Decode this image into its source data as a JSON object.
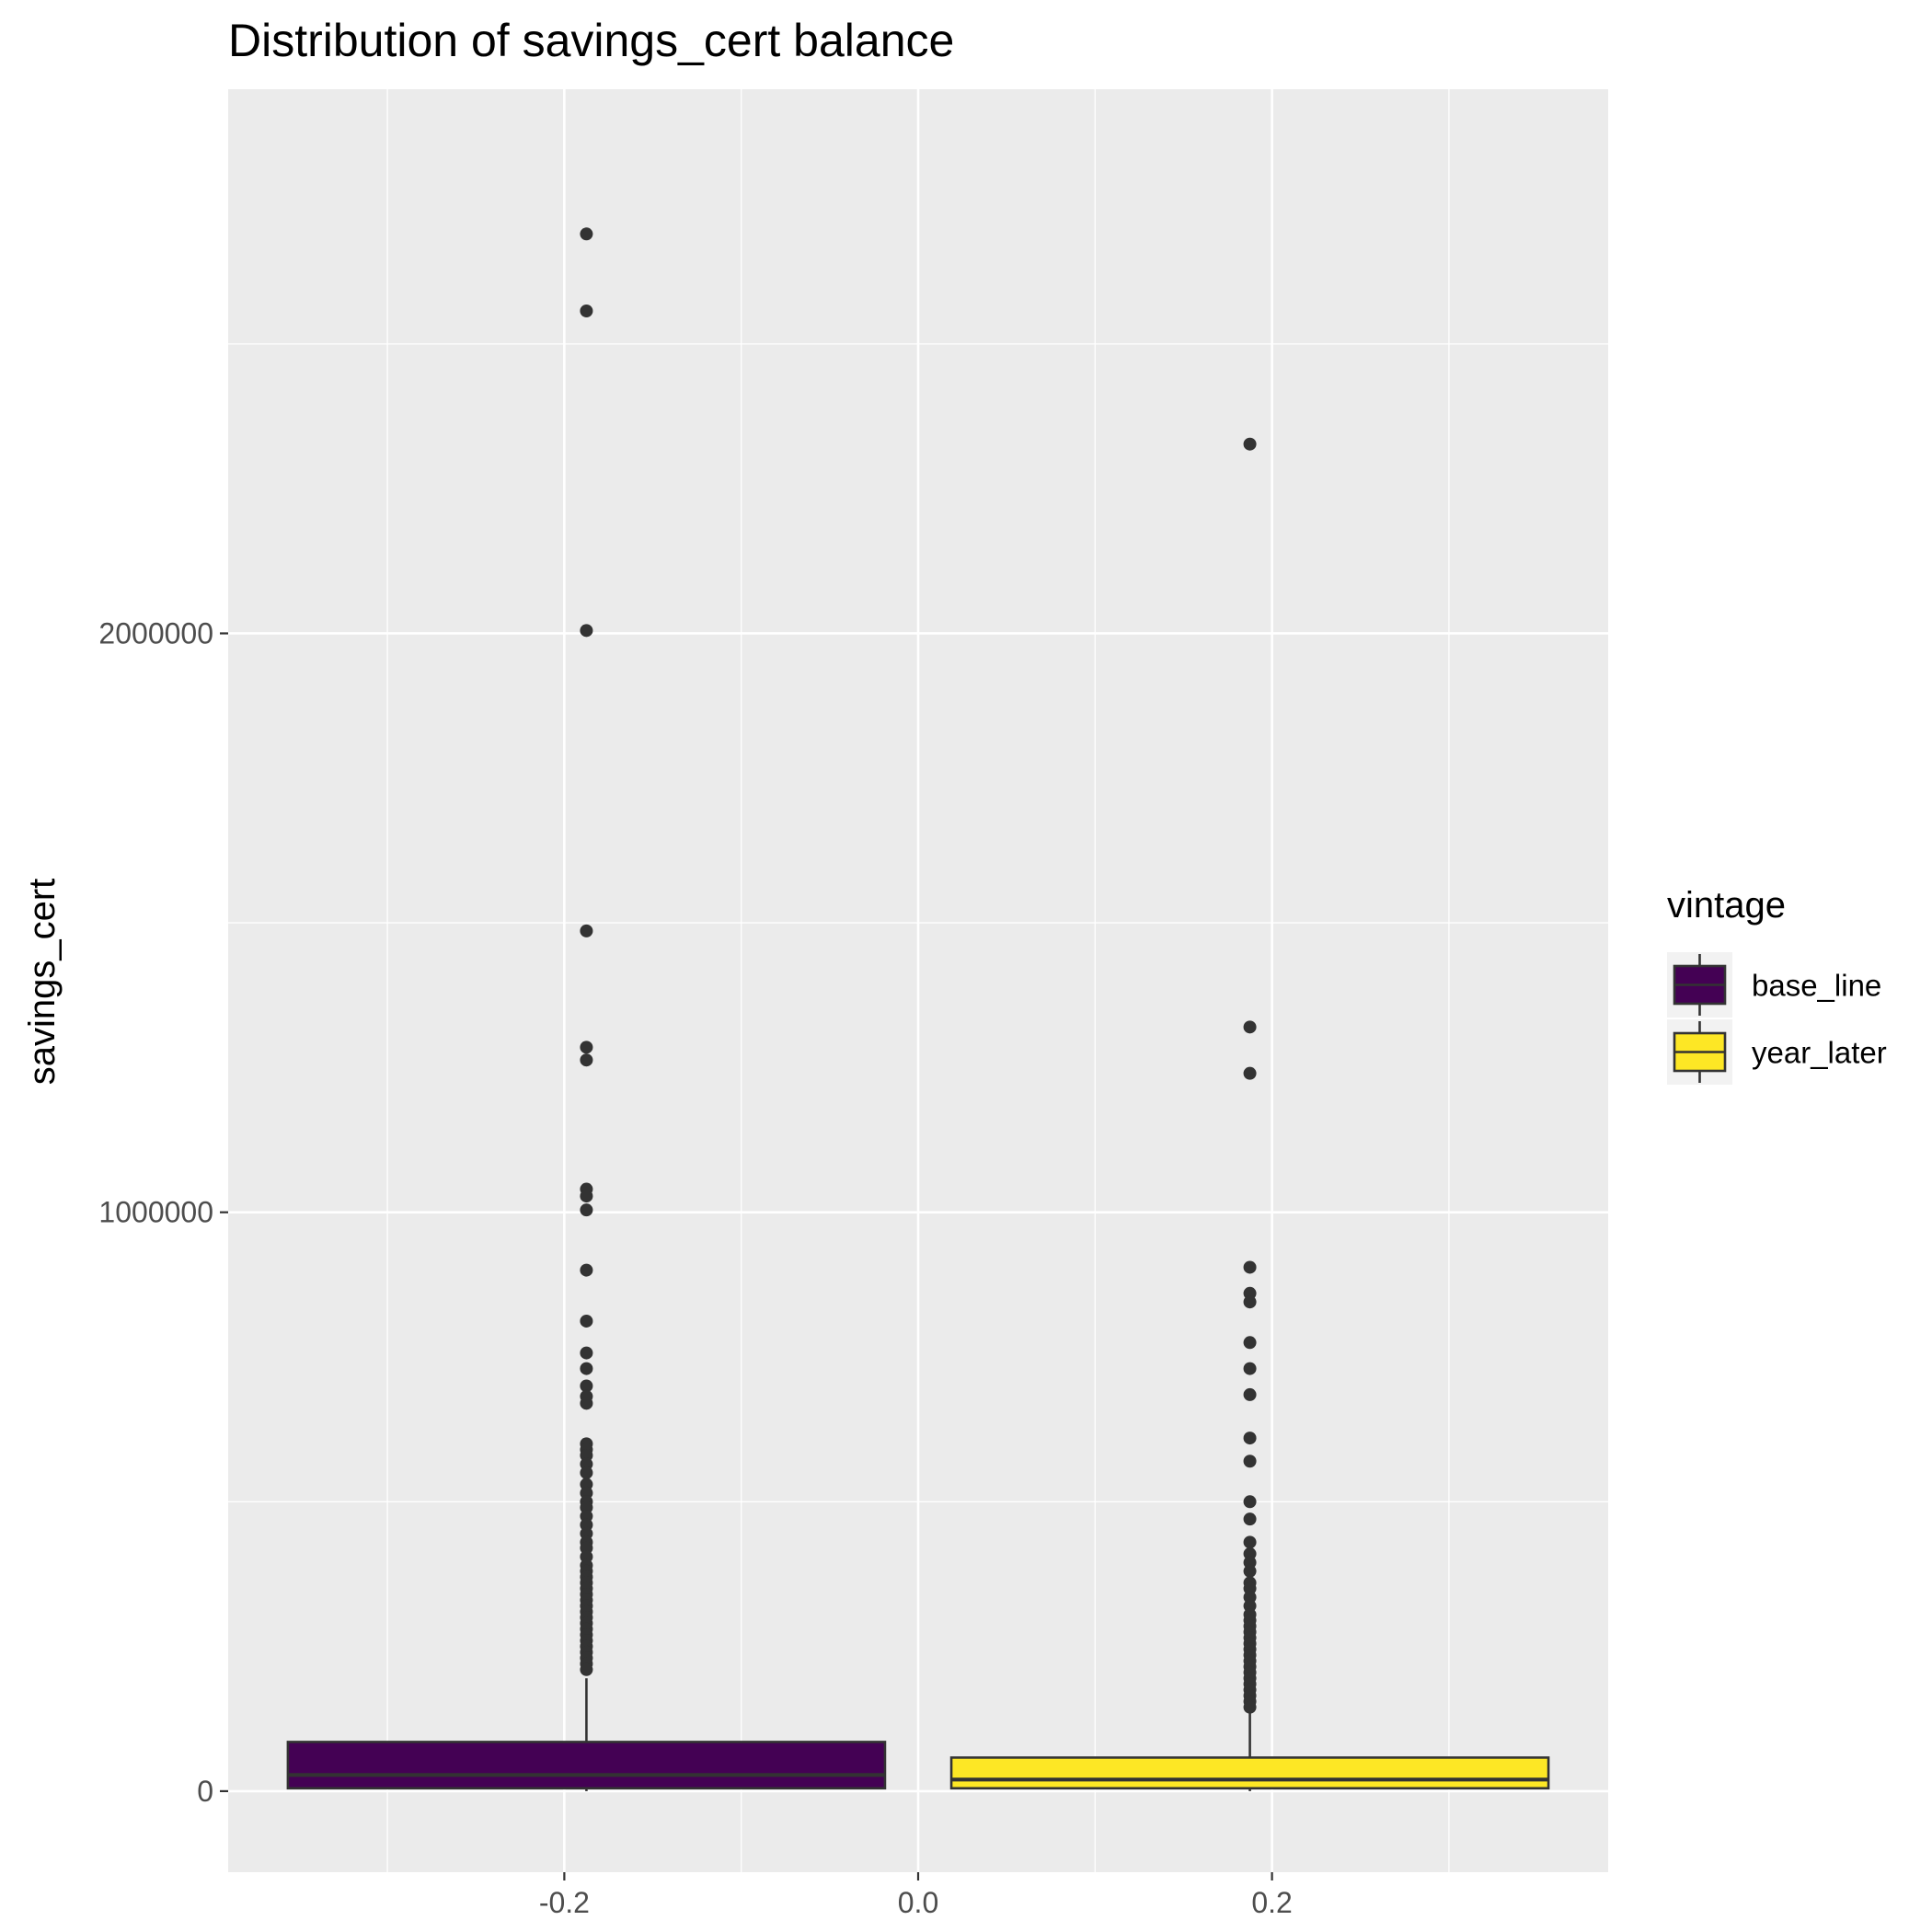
{
  "chart_data": {
    "type": "boxplot",
    "title": "Distribution of savings_cert balance",
    "xlabel": "",
    "ylabel": "savings_cert",
    "xlim": [
      -0.39,
      0.39
    ],
    "ylim": [
      -140000,
      2940000
    ],
    "x_ticks": [
      -0.2,
      0.0,
      0.2
    ],
    "x_tick_labels": [
      "-0.2",
      "0.0",
      "0.2"
    ],
    "y_ticks": [
      0,
      1000000,
      2000000
    ],
    "y_tick_labels": [
      "0",
      "1000000",
      "2000000"
    ],
    "grid": true,
    "legend": {
      "title": "vintage",
      "position": "right"
    },
    "colors": {
      "panel": "#EBEBEB",
      "grid": "#FFFFFF",
      "box_outline": "#333333",
      "outlier": "#333333"
    },
    "series": [
      {
        "name": "base_line",
        "color": "#440154",
        "x": -0.1875,
        "width": 0.3375,
        "q1": 5000,
        "median": 28000,
        "q3": 85000,
        "whisker_low": 0,
        "whisker_high": 195000,
        "outliers": [
          2690000,
          2557000,
          2005000,
          1486000,
          1285000,
          1263000,
          1040000,
          1028000,
          1004000,
          900000,
          812000,
          757000,
          730000,
          700000,
          682000,
          670000,
          600000,
          590000,
          580000,
          565000,
          550000,
          530000,
          515000,
          500000,
          490000,
          475000,
          460000,
          445000,
          430000,
          420000,
          405000,
          390000,
          380000,
          370000,
          360000,
          350000,
          340000,
          330000,
          320000,
          310000,
          300000,
          290000,
          280000,
          270000,
          260000,
          250000,
          240000,
          230000,
          220000,
          210000
        ]
      },
      {
        "name": "year_later",
        "color": "#FDE725",
        "x": 0.1875,
        "width": 0.3375,
        "q1": 5000,
        "median": 20000,
        "q3": 58000,
        "whisker_low": 0,
        "whisker_high": 135000,
        "outliers": [
          2327000,
          1320000,
          1240000,
          905000,
          860000,
          845000,
          775000,
          730000,
          685000,
          610000,
          570000,
          500000,
          470000,
          430000,
          410000,
          395000,
          380000,
          360000,
          350000,
          335000,
          320000,
          305000,
          295000,
          285000,
          275000,
          265000,
          255000,
          245000,
          235000,
          225000,
          215000,
          205000,
          195000,
          185000,
          175000,
          165000,
          155000,
          145000
        ]
      }
    ]
  }
}
